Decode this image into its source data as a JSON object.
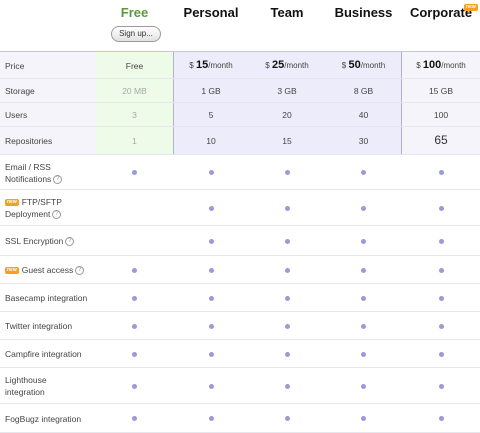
{
  "plans": [
    {
      "name": "Free"
    },
    {
      "name": "Personal"
    },
    {
      "name": "Team"
    },
    {
      "name": "Business"
    },
    {
      "name": "Corporate"
    }
  ],
  "signup_label": "Sign up...",
  "new_badge": "new",
  "help_glyph": "?",
  "rows": {
    "price": {
      "label": "Price",
      "free": "Free",
      "currency": "$",
      "per": "/month",
      "amounts": [
        "15",
        "25",
        "50",
        "100"
      ]
    },
    "storage": {
      "label": "Storage",
      "values": [
        "20 MB",
        "1 GB",
        "3 GB",
        "8 GB",
        "15 GB"
      ]
    },
    "users": {
      "label": "Users",
      "values": [
        "3",
        "5",
        "20",
        "40",
        "100"
      ]
    },
    "repositories": {
      "label": "Repositories",
      "values": [
        "1",
        "10",
        "15",
        "30",
        "65"
      ]
    }
  },
  "features": [
    {
      "label": "Email / RSS Notifications",
      "line1": "Email / RSS",
      "line2": "Notifications",
      "help": true,
      "new": false,
      "included": [
        true,
        true,
        true,
        true,
        true
      ]
    },
    {
      "label": "FTP/SFTP Deployment",
      "line1": "FTP/SFTP",
      "line2": "Deployment",
      "help": true,
      "new": true,
      "included": [
        false,
        true,
        true,
        true,
        true
      ]
    },
    {
      "label": "SSL Encryption",
      "help": true,
      "new": false,
      "included": [
        false,
        true,
        true,
        true,
        true
      ]
    },
    {
      "label": "Guest access",
      "help": true,
      "new": true,
      "included": [
        true,
        true,
        true,
        true,
        true
      ]
    },
    {
      "label": "Basecamp integration",
      "help": false,
      "new": false,
      "included": [
        true,
        true,
        true,
        true,
        true
      ]
    },
    {
      "label": "Twitter integration",
      "help": false,
      "new": false,
      "included": [
        true,
        true,
        true,
        true,
        true
      ]
    },
    {
      "label": "Campfire integration",
      "help": false,
      "new": false,
      "included": [
        true,
        true,
        true,
        true,
        true
      ]
    },
    {
      "label": "Lighthouse integration",
      "line1": "Lighthouse",
      "line2": "integration",
      "help": false,
      "new": false,
      "included": [
        true,
        true,
        true,
        true,
        true
      ]
    },
    {
      "label": "FogBugz integration",
      "help": false,
      "new": false,
      "included": [
        true,
        true,
        true,
        true,
        true
      ]
    }
  ],
  "colors": {
    "free_accent": "#5a9a3a",
    "dot": "#9a9ad8",
    "badge": "#f6a020"
  }
}
